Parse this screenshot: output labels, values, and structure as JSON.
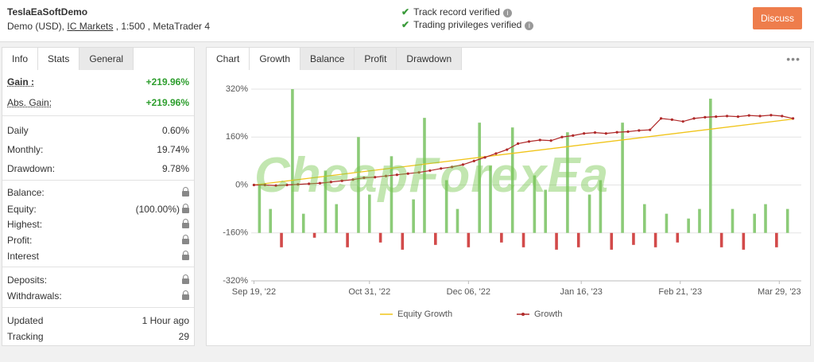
{
  "header": {
    "account_name": "TeslaEaSoftDemo",
    "account_type": "Demo (USD),",
    "broker": "IC Markets",
    "account_details": ", 1:500 , MetaTrader 4",
    "verifications": [
      "Track record verified",
      "Trading privileges verified"
    ],
    "button": "Discuss"
  },
  "sidebar": {
    "tabs": [
      "Info",
      "Stats",
      "General"
    ],
    "groups": [
      [
        {
          "label": "Gain :",
          "value": "+219.96%"
        },
        {
          "label": "Abs. Gain:",
          "value": "+219.96%"
        }
      ],
      [
        {
          "label": "Daily",
          "value": "0.60%"
        },
        {
          "label": "Monthly:",
          "value": "19.74%"
        },
        {
          "label": "Drawdown:",
          "value": "9.78%"
        }
      ],
      [
        {
          "label": "Balance:",
          "locked": true
        },
        {
          "label": "Equity:",
          "value": "(100.00%)",
          "locked": true
        },
        {
          "label": "Highest:",
          "locked": true
        },
        {
          "label": "Profit:",
          "locked": true
        },
        {
          "label": "Interest",
          "locked": true
        }
      ],
      [
        {
          "label": "Deposits:",
          "locked": true
        },
        {
          "label": "Withdrawals:",
          "locked": true
        }
      ],
      [
        {
          "label": "Updated",
          "value": "1 Hour ago"
        },
        {
          "label": "Tracking",
          "value": "29"
        }
      ]
    ]
  },
  "chart_panel": {
    "tabs": [
      "Chart",
      "Growth",
      "Balance",
      "Profit",
      "Drawdown"
    ],
    "watermark": "CheapForexEa"
  },
  "chart_data": {
    "type": "line",
    "grid": true,
    "xlim": [
      -1,
      199
    ],
    "xticks": [
      {
        "value": 0,
        "label": "Sep 19, '22"
      },
      {
        "value": 42,
        "label": "Oct 31, '22"
      },
      {
        "value": 78,
        "label": "Dec 06, '22"
      },
      {
        "value": 119,
        "label": "Jan 16, '23"
      },
      {
        "value": 155,
        "label": "Feb 21, '23"
      },
      {
        "value": 191,
        "label": "Mar 29, '23"
      }
    ],
    "ylim": [
      -320,
      320
    ],
    "yticks": [
      {
        "value": 320,
        "label": "320%"
      },
      {
        "value": 160,
        "label": "160%"
      },
      {
        "value": 0,
        "label": "0%"
      },
      {
        "value": -160,
        "label": "-160%"
      },
      {
        "value": -320,
        "label": "-320%"
      }
    ],
    "y2lim": [
      -1,
      3
    ],
    "series": [
      {
        "name": "Equity Growth",
        "color": "#f0c419",
        "x": [
          0,
          196
        ],
        "values": [
          0,
          220
        ]
      },
      {
        "name": "Growth",
        "color": "#b02a2a",
        "x": [
          0,
          4,
          8,
          12,
          16,
          20,
          24,
          28,
          32,
          36,
          40,
          44,
          48,
          52,
          56,
          60,
          64,
          68,
          72,
          76,
          80,
          84,
          88,
          92,
          96,
          100,
          104,
          108,
          112,
          116,
          120,
          124,
          128,
          132,
          136,
          140,
          144,
          148,
          152,
          156,
          160,
          164,
          168,
          172,
          176,
          180,
          184,
          188,
          192,
          196
        ],
        "values": [
          0,
          0,
          -2,
          0,
          2,
          4,
          6,
          10,
          14,
          18,
          24,
          26,
          30,
          34,
          38,
          42,
          48,
          55,
          60,
          68,
          80,
          92,
          105,
          118,
          138,
          145,
          150,
          148,
          160,
          165,
          172,
          175,
          172,
          176,
          178,
          182,
          184,
          222,
          218,
          212,
          222,
          226,
          228,
          230,
          228,
          232,
          230,
          233,
          230,
          222
        ]
      },
      {
        "type": "bar",
        "axis": "y2",
        "color": "#8ccb78",
        "negative_color": "#d24a4a",
        "x": [
          2,
          6,
          10,
          14,
          18,
          22,
          26,
          30,
          34,
          38,
          42,
          46,
          50,
          54,
          58,
          62,
          66,
          70,
          74,
          78,
          82,
          86,
          90,
          94,
          98,
          102,
          106,
          110,
          114,
          118,
          122,
          126,
          130,
          134,
          138,
          142,
          146,
          150,
          154,
          158,
          162,
          166,
          170,
          174,
          178,
          182,
          186,
          190,
          194
        ],
        "values": [
          1.0,
          0.5,
          -0.3,
          3.0,
          0.4,
          -0.1,
          1.3,
          0.6,
          -0.3,
          2.0,
          0.8,
          -0.2,
          1.6,
          -0.35,
          0.7,
          2.4,
          -0.25,
          1.1,
          0.5,
          -0.3,
          2.3,
          1.4,
          -0.2,
          2.2,
          -0.3,
          1.2,
          0.9,
          -0.35,
          2.1,
          -0.3,
          0.8,
          1.1,
          -0.35,
          2.3,
          -0.25,
          0.6,
          -0.3,
          0.4,
          -0.2,
          0.3,
          0.5,
          2.8,
          -0.3,
          0.5,
          -0.35,
          0.4,
          0.6,
          -0.3,
          0.5
        ]
      }
    ]
  }
}
